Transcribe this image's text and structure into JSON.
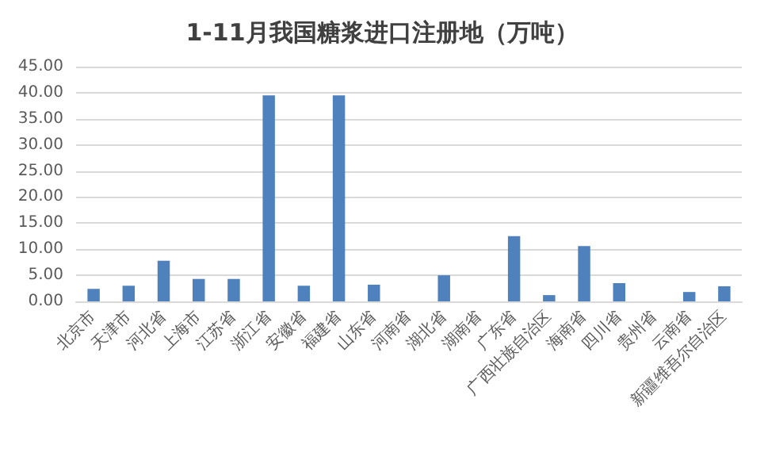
{
  "chart_data": {
    "type": "bar",
    "title": "1-11月我国糖浆进口注册地（万吨）",
    "categories": [
      "北京市",
      "天津市",
      "河北省",
      "上海市",
      "江苏省",
      "浙江省",
      "安徽省",
      "福建省",
      "山东省",
      "河南省",
      "湖北省",
      "湖南省",
      "广东省",
      "广西壮族自治区",
      "海南省",
      "四川省",
      "贵州省",
      "云南省",
      "新疆维吾尔自治区"
    ],
    "values": [
      2.4,
      3.0,
      7.8,
      4.3,
      4.3,
      39.5,
      3.0,
      39.5,
      3.2,
      0,
      5.0,
      0,
      12.5,
      1.2,
      10.6,
      3.5,
      0,
      1.8,
      2.9
    ],
    "color": "#4f81bd",
    "ylim": [
      0,
      45
    ],
    "yticks": [
      {
        "value": 0,
        "label": "0.00"
      },
      {
        "value": 5,
        "label": "5.00"
      },
      {
        "value": 10,
        "label": "10.00"
      },
      {
        "value": 15,
        "label": "15.00"
      },
      {
        "value": 20,
        "label": "20.00"
      },
      {
        "value": 25,
        "label": "25.00"
      },
      {
        "value": 30,
        "label": "30.00"
      },
      {
        "value": 35,
        "label": "35.00"
      },
      {
        "value": 40,
        "label": "40.00"
      },
      {
        "value": 45,
        "label": "45.00"
      }
    ],
    "grid": "y"
  }
}
